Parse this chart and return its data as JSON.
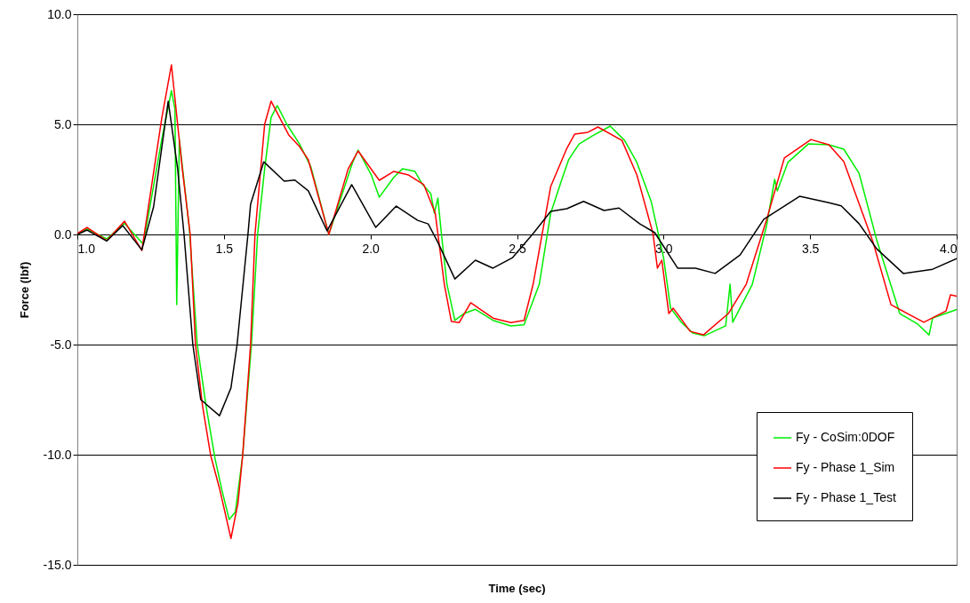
{
  "chart_data": {
    "type": "line",
    "xlabel": "Time (sec)",
    "ylabel": "Force (lbf)",
    "xlim": [
      1.0,
      4.0
    ],
    "ylim": [
      -15,
      10
    ],
    "xticks": [
      {
        "value": 1.0,
        "label": "1.0"
      },
      {
        "value": 1.5,
        "label": "1.5"
      },
      {
        "value": 2.0,
        "label": "2.0"
      },
      {
        "value": 2.5,
        "label": "2.5"
      },
      {
        "value": 3.0,
        "label": "3.0"
      },
      {
        "value": 3.5,
        "label": "3.5"
      },
      {
        "value": 4.0,
        "label": "4.0"
      }
    ],
    "yticks": [
      {
        "value": -15,
        "label": "-15.0"
      },
      {
        "value": -10,
        "label": "-10.0"
      },
      {
        "value": -5,
        "label": "-5.0"
      },
      {
        "value": 0,
        "label": "0.0"
      },
      {
        "value": 5,
        "label": "5.0"
      },
      {
        "value": 10,
        "label": "10.0"
      }
    ],
    "grid": "y",
    "legend": "bottom right",
    "marker": "none",
    "line_style": "solid",
    "series": [
      {
        "name": "Fy - CoSim:0DOF",
        "color": "#00ee00",
        "x": [
          1.0,
          1.033,
          1.1,
          1.161,
          1.225,
          1.288,
          1.321,
          1.333,
          1.339,
          1.348,
          1.382,
          1.409,
          1.439,
          1.47,
          1.494,
          1.518,
          1.539,
          1.564,
          1.594,
          1.615,
          1.639,
          1.661,
          1.682,
          1.715,
          1.758,
          1.797,
          1.858,
          1.939,
          1.958,
          2.003,
          2.03,
          2.079,
          2.109,
          2.152,
          2.176,
          2.206,
          2.218,
          2.23,
          2.242,
          2.261,
          2.288,
          2.318,
          2.358,
          2.418,
          2.479,
          2.524,
          2.576,
          2.615,
          2.655,
          2.676,
          2.712,
          2.758,
          2.818,
          2.867,
          2.909,
          2.958,
          3.0,
          3.024,
          3.061,
          3.1,
          3.139,
          3.212,
          3.227,
          3.236,
          3.303,
          3.352,
          3.379,
          3.388,
          3.424,
          3.494,
          3.564,
          3.615,
          3.667,
          3.727,
          3.806,
          3.867,
          3.906,
          3.918,
          3.988,
          4.0
        ],
        "values": [
          0.0,
          0.25,
          -0.2,
          0.5,
          -0.44,
          4.31,
          6.53,
          5.69,
          -3.19,
          4.31,
          0.28,
          -5.0,
          -7.78,
          -10.2,
          -11.65,
          -12.94,
          -12.6,
          -10.04,
          -5.0,
          0.0,
          2.98,
          5.32,
          5.85,
          5.0,
          4.11,
          3.06,
          0.0,
          3.27,
          3.83,
          2.7,
          1.69,
          2.58,
          2.98,
          2.86,
          2.3,
          1.85,
          0.97,
          1.65,
          0.04,
          -2.26,
          -3.9,
          -3.6,
          -3.4,
          -3.9,
          -4.15,
          -4.1,
          -2.26,
          0.97,
          2.58,
          3.39,
          4.11,
          4.48,
          4.92,
          4.27,
          3.27,
          1.49,
          -1.05,
          -3.35,
          -3.99,
          -4.48,
          -4.6,
          -4.15,
          -2.26,
          -3.99,
          -2.26,
          0.44,
          2.5,
          1.98,
          3.27,
          4.11,
          4.07,
          3.87,
          2.78,
          -0.24,
          -3.59,
          -4.07,
          -4.56,
          -3.79,
          -3.47,
          -3.4
        ]
      },
      {
        "name": "Fy - Phase 1_Sim",
        "color": "#ff0000",
        "x": [
          1.0,
          1.033,
          1.1,
          1.161,
          1.22,
          1.288,
          1.321,
          1.358,
          1.385,
          1.403,
          1.427,
          1.455,
          1.485,
          1.524,
          1.548,
          1.564,
          1.591,
          1.606,
          1.639,
          1.661,
          1.721,
          1.758,
          1.788,
          1.858,
          1.924,
          1.958,
          2.03,
          2.079,
          2.13,
          2.182,
          2.221,
          2.252,
          2.276,
          2.303,
          2.342,
          2.418,
          2.479,
          2.524,
          2.555,
          2.615,
          2.67,
          2.697,
          2.742,
          2.776,
          2.858,
          2.909,
          2.964,
          2.979,
          2.994,
          3.018,
          3.033,
          3.091,
          3.136,
          3.221,
          3.282,
          3.352,
          3.412,
          3.503,
          3.564,
          3.615,
          3.715,
          3.776,
          3.888,
          3.964,
          3.979,
          4.0
        ],
        "values": [
          0.04,
          0.32,
          -0.28,
          0.6,
          -0.73,
          5.28,
          7.7,
          2.98,
          0.0,
          -5.0,
          -7.78,
          -10.04,
          -11.53,
          -13.8,
          -12.2,
          -10.04,
          -5.0,
          0.0,
          5.0,
          6.05,
          4.52,
          3.99,
          3.39,
          0.0,
          2.98,
          3.79,
          2.46,
          2.86,
          2.7,
          2.26,
          0.97,
          -2.26,
          -3.95,
          -4.0,
          -3.1,
          -3.8,
          -4.0,
          -3.9,
          -2.26,
          2.18,
          3.91,
          4.56,
          4.64,
          4.88,
          4.27,
          2.7,
          0.04,
          -1.53,
          -1.17,
          -3.59,
          -3.35,
          -4.4,
          -4.56,
          -3.59,
          -2.26,
          0.69,
          3.47,
          4.31,
          4.07,
          3.31,
          -0.36,
          -3.19,
          -3.99,
          -3.47,
          -2.74,
          -2.8
        ]
      },
      {
        "name": "Fy - Phase 1_Test",
        "color": "#000000",
        "x": [
          1.0,
          1.033,
          1.1,
          1.155,
          1.22,
          1.26,
          1.31,
          1.342,
          1.364,
          1.394,
          1.421,
          1.485,
          1.524,
          1.545,
          1.582,
          1.591,
          1.636,
          1.706,
          1.742,
          1.788,
          1.852,
          1.936,
          2.018,
          2.088,
          2.161,
          2.197,
          2.23,
          2.288,
          2.358,
          2.418,
          2.485,
          2.555,
          2.615,
          2.67,
          2.727,
          2.797,
          2.848,
          2.918,
          2.97,
          3.048,
          3.109,
          3.176,
          3.261,
          3.342,
          3.464,
          3.564,
          3.606,
          3.667,
          3.727,
          3.818,
          3.918,
          4.0
        ],
        "values": [
          0.0,
          0.2,
          -0.3,
          0.4,
          -0.7,
          1.25,
          6.05,
          3.0,
          0.0,
          -5.0,
          -7.5,
          -8.23,
          -6.97,
          -5.0,
          0.0,
          1.37,
          3.3,
          2.42,
          2.47,
          1.98,
          0.16,
          2.26,
          0.32,
          1.29,
          0.64,
          0.48,
          -0.36,
          -2.02,
          -1.17,
          -1.53,
          -1.05,
          0.04,
          1.05,
          1.17,
          1.5,
          1.09,
          1.2,
          0.49,
          0.08,
          -1.53,
          -1.53,
          -1.77,
          -0.93,
          0.69,
          1.73,
          1.44,
          1.3,
          0.49,
          -0.65,
          -1.77,
          -1.58,
          -1.1
        ]
      }
    ]
  }
}
